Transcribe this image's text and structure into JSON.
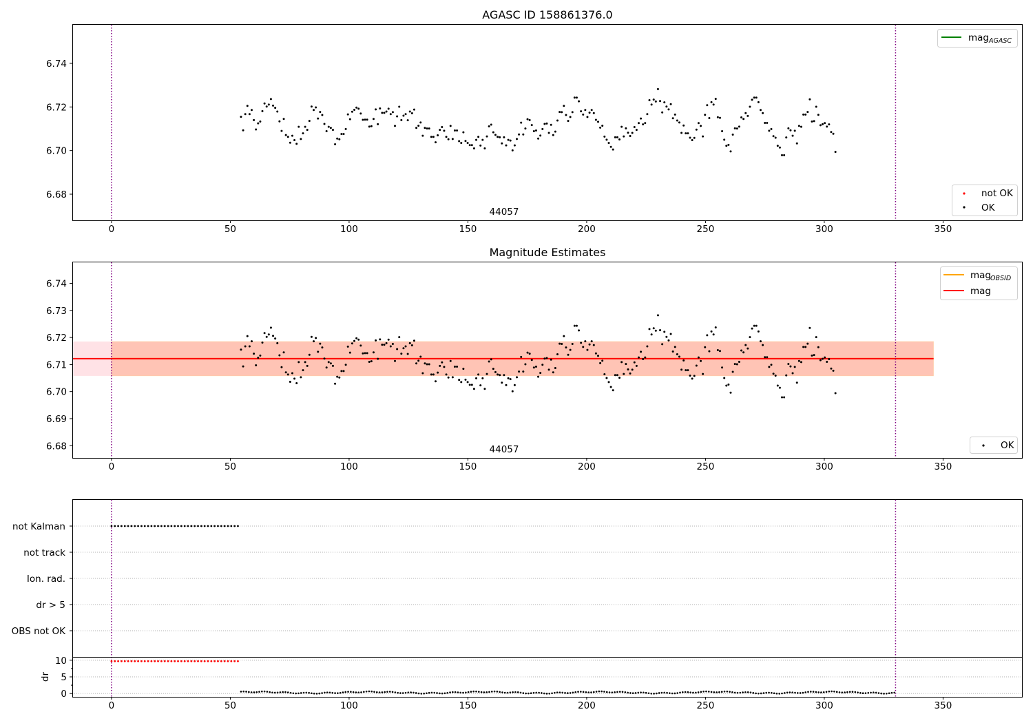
{
  "colors": {
    "ok": "#000000",
    "not_ok": "#ff0000",
    "mag_agasc": "#008000",
    "mag_obsid": "#ffa500",
    "mag": "#ff0000",
    "obsid_band": "#ffa07a",
    "mag_band": "#ffb6c1",
    "obs_boundary": "#800080",
    "grid": "#b0b0b0"
  },
  "panel1": {
    "title": "AGASC ID 158861376.0",
    "obsid_label": "44057",
    "legend_lines": [
      {
        "name": "mag",
        "sub": "AGASC",
        "color": "#008000"
      }
    ],
    "legend_points": [
      {
        "name": "not OK",
        "color": "#ff0000"
      },
      {
        "name": "OK",
        "color": "#000000"
      }
    ],
    "yticks": [
      "6.68",
      "6.70",
      "6.72",
      "6.74"
    ],
    "xticks": [
      "0",
      "50",
      "100",
      "150",
      "200",
      "250",
      "300",
      "350"
    ]
  },
  "panel2": {
    "title": "Magnitude Estimates",
    "obsid_label": "44057",
    "legend_lines": [
      {
        "name": "mag",
        "sub": "OBSID",
        "color": "#ffa500"
      },
      {
        "name": "mag",
        "sub": "",
        "color": "#ff0000"
      }
    ],
    "legend_points": [
      {
        "name": "OK",
        "color": "#000000"
      }
    ],
    "yticks": [
      "6.68",
      "6.69",
      "6.70",
      "6.71",
      "6.72",
      "6.73",
      "6.74"
    ],
    "xticks": [
      "0",
      "50",
      "100",
      "150",
      "200",
      "250",
      "300",
      "350"
    ]
  },
  "panel3": {
    "flag_labels": [
      "not Kalman",
      "not track",
      "Ion. rad.",
      "dr > 5",
      "OBS not OK"
    ],
    "dr_label": "dr",
    "dr_yticks": [
      "0",
      "5",
      "10"
    ],
    "xticks": [
      "0",
      "50",
      "100",
      "150",
      "200",
      "250",
      "300",
      "350"
    ]
  },
  "chart_data": [
    {
      "type": "scatter",
      "title": "AGASC ID 158861376.0",
      "xlabel": "",
      "ylabel": "",
      "xlim": [
        -16.5,
        383.5
      ],
      "ylim": [
        6.668,
        6.758
      ],
      "grid": false,
      "legend_placement": "top-right (lines) / bottom-right (points)",
      "obs_boundaries": [
        0,
        330
      ],
      "obsid_annotation": {
        "text": "44057",
        "x": 165
      },
      "series": [
        {
          "name": "OK",
          "x_start": 54.5,
          "x_step": 0.9,
          "values": [
            6.7155,
            6.7093,
            6.7167,
            6.7205,
            6.7167,
            6.7186,
            6.714,
            6.7097,
            6.7125,
            6.7133,
            6.7181,
            6.7216,
            6.7202,
            6.7211,
            6.7236,
            6.7206,
            6.7196,
            6.7179,
            6.7134,
            6.709,
            6.7145,
            6.7071,
            6.7063,
            6.7036,
            6.7068,
            6.7048,
            6.7031,
            6.7109,
            6.7053,
            6.7079,
            6.7109,
            6.7095,
            6.7136,
            6.7202,
            6.7186,
            6.7198,
            6.7147,
            6.7177,
            6.7163,
            6.7122,
            6.7089,
            6.7109,
            6.7104,
            6.7095,
            6.7029,
            6.7055,
            6.7052,
            6.7076,
            6.7076,
            6.7099,
            6.7166,
            6.7144,
            6.7178,
            6.7187,
            6.7197,
            6.7192,
            6.717,
            6.7141,
            6.7142,
            6.7142,
            6.711,
            6.7112,
            6.7145,
            6.7189,
            6.7121,
            6.7193,
            6.7173,
            6.7173,
            6.7179,
            6.7192,
            6.7167,
            6.7176,
            6.7113,
            6.7157,
            6.7201,
            6.714,
            6.716,
            6.7167,
            6.7139,
            6.7179,
            6.7171,
            6.7188,
            6.7104,
            6.7114,
            6.7129,
            6.7068,
            6.7104,
            6.7101,
            6.7101,
            6.7063,
            6.7063,
            6.7038,
            6.707,
            6.7095,
            6.7108,
            6.7091,
            6.7063,
            6.7052,
            6.7113,
            6.7053,
            6.7092,
            6.7092,
            6.7043,
            6.7035,
            6.7084,
            6.7044,
            6.7035,
            6.7025,
            6.7025,
            6.701,
            6.7049,
            6.7063,
            6.7023,
            6.7049,
            6.701,
            6.7065,
            6.7111,
            6.7119,
            6.7084,
            6.7072,
            6.7063,
            6.7061,
            6.7033,
            6.7061,
            6.7024,
            6.7049,
            6.7046,
            6.7001,
            6.7024,
            6.7053,
            6.7074,
            6.7128,
            6.7074,
            6.7101,
            6.7144,
            6.714,
            6.7117,
            6.7089,
            6.7092,
            6.7055,
            6.7069,
            6.7099,
            6.7122,
            6.7124,
            6.7081,
            6.7118,
            6.7071,
            6.7087,
            6.7138,
            6.7177,
            6.7176,
            6.7205,
            6.7163,
            6.7136,
            6.7154,
            6.7176,
            6.7243,
            6.7243,
            6.7226,
            6.718,
            6.7165,
            6.7186,
            6.7154,
            6.7174,
            6.7186,
            6.7172,
            6.7141,
            6.7132,
            6.7105,
            6.7114,
            6.7064,
            6.705,
            6.7035,
            6.7017,
            6.7005,
            6.7061,
            6.7061,
            6.7051,
            6.7109,
            6.7065,
            6.7102,
            6.7082,
            6.7067,
            6.7081,
            6.7108,
            6.7095,
            6.7126,
            6.7147,
            6.712,
            6.7126,
            6.7167,
            6.7231,
            6.7211,
            6.7234,
            6.7225,
            6.7282,
            6.7227,
            6.7175,
            6.7221,
            6.7202,
            6.7189,
            6.7213,
            6.7148,
            6.7165,
            6.7138,
            6.7129,
            6.7081,
            6.7115,
            6.7079,
            6.7079,
            6.7059,
            6.7048,
            6.7058,
            6.7096,
            6.7126,
            6.7113,
            6.7065,
            6.7164,
            6.7208,
            6.7149,
            6.7222,
            6.7211,
            6.7237,
            6.7153,
            6.715,
            6.7089,
            6.705,
            6.7022,
            6.7026,
            6.6996,
            6.7073,
            6.7102,
            6.7101,
            6.711,
            6.7152,
            6.7145,
            6.7172,
            6.7159,
            6.7201,
            6.7233,
            6.7243,
            6.7243,
            6.7222,
            6.7186,
            6.7172,
            6.7127,
            6.7127,
            6.7091,
            6.7099,
            6.7066,
            6.7059,
            6.7022,
            6.7014,
            6.6979,
            6.6979,
            6.706,
            6.7102,
            6.7093,
            6.7068,
            6.7091,
            6.7033,
            6.7113,
            6.7109,
            6.7165,
            6.7165,
            6.7177,
            6.7235,
            6.7133,
            6.7135,
            6.7201,
            6.7164,
            6.7116,
            6.7121,
            6.7126,
            6.711,
            6.712,
            6.7085,
            6.7077,
            6.6994
          ]
        },
        {
          "name": "not OK",
          "x_start": 0.4,
          "x_step": 0.9,
          "values": []
        }
      ]
    },
    {
      "type": "scatter",
      "title": "Magnitude Estimates",
      "xlabel": "",
      "ylabel": "",
      "xlim": [
        -16.5,
        383.5
      ],
      "ylim": [
        6.6755,
        6.748
      ],
      "grid": false,
      "legend_placement": "top-right (lines) / bottom-right (points)",
      "obsid_annotation": {
        "text": "44057",
        "x": 165
      },
      "lines": [
        {
          "name": "mag_OBSID",
          "x": [
            0,
            346
          ],
          "value": 6.71215,
          "band": [
            6.7058,
            6.7185
          ]
        },
        {
          "name": "mag",
          "x": [
            -16.5,
            346
          ],
          "value": 6.71215,
          "band": [
            6.7058,
            6.7185
          ]
        }
      ],
      "series_ref": "same OK points as panel 1"
    },
    {
      "type": "scatter",
      "title": "",
      "xlim": [
        -16.5,
        383.5
      ],
      "flags": [
        {
          "name": "not Kalman",
          "x_range": [
            0,
            53.2
          ],
          "flag": true
        },
        {
          "name": "not track",
          "flag": false
        },
        {
          "name": "Ion. rad.",
          "flag": false
        },
        {
          "name": "dr > 5",
          "flag": false
        },
        {
          "name": "OBS not OK",
          "flag": false
        }
      ],
      "dr": {
        "ylabel": "dr",
        "ylim": [
          -1,
          11
        ],
        "not_ok_x_range": [
          0,
          53.2
        ],
        "not_ok_value": 9.7,
        "ok_x_range": [
          54.5,
          330
        ],
        "ok_typical_value": 0.3
      }
    }
  ]
}
